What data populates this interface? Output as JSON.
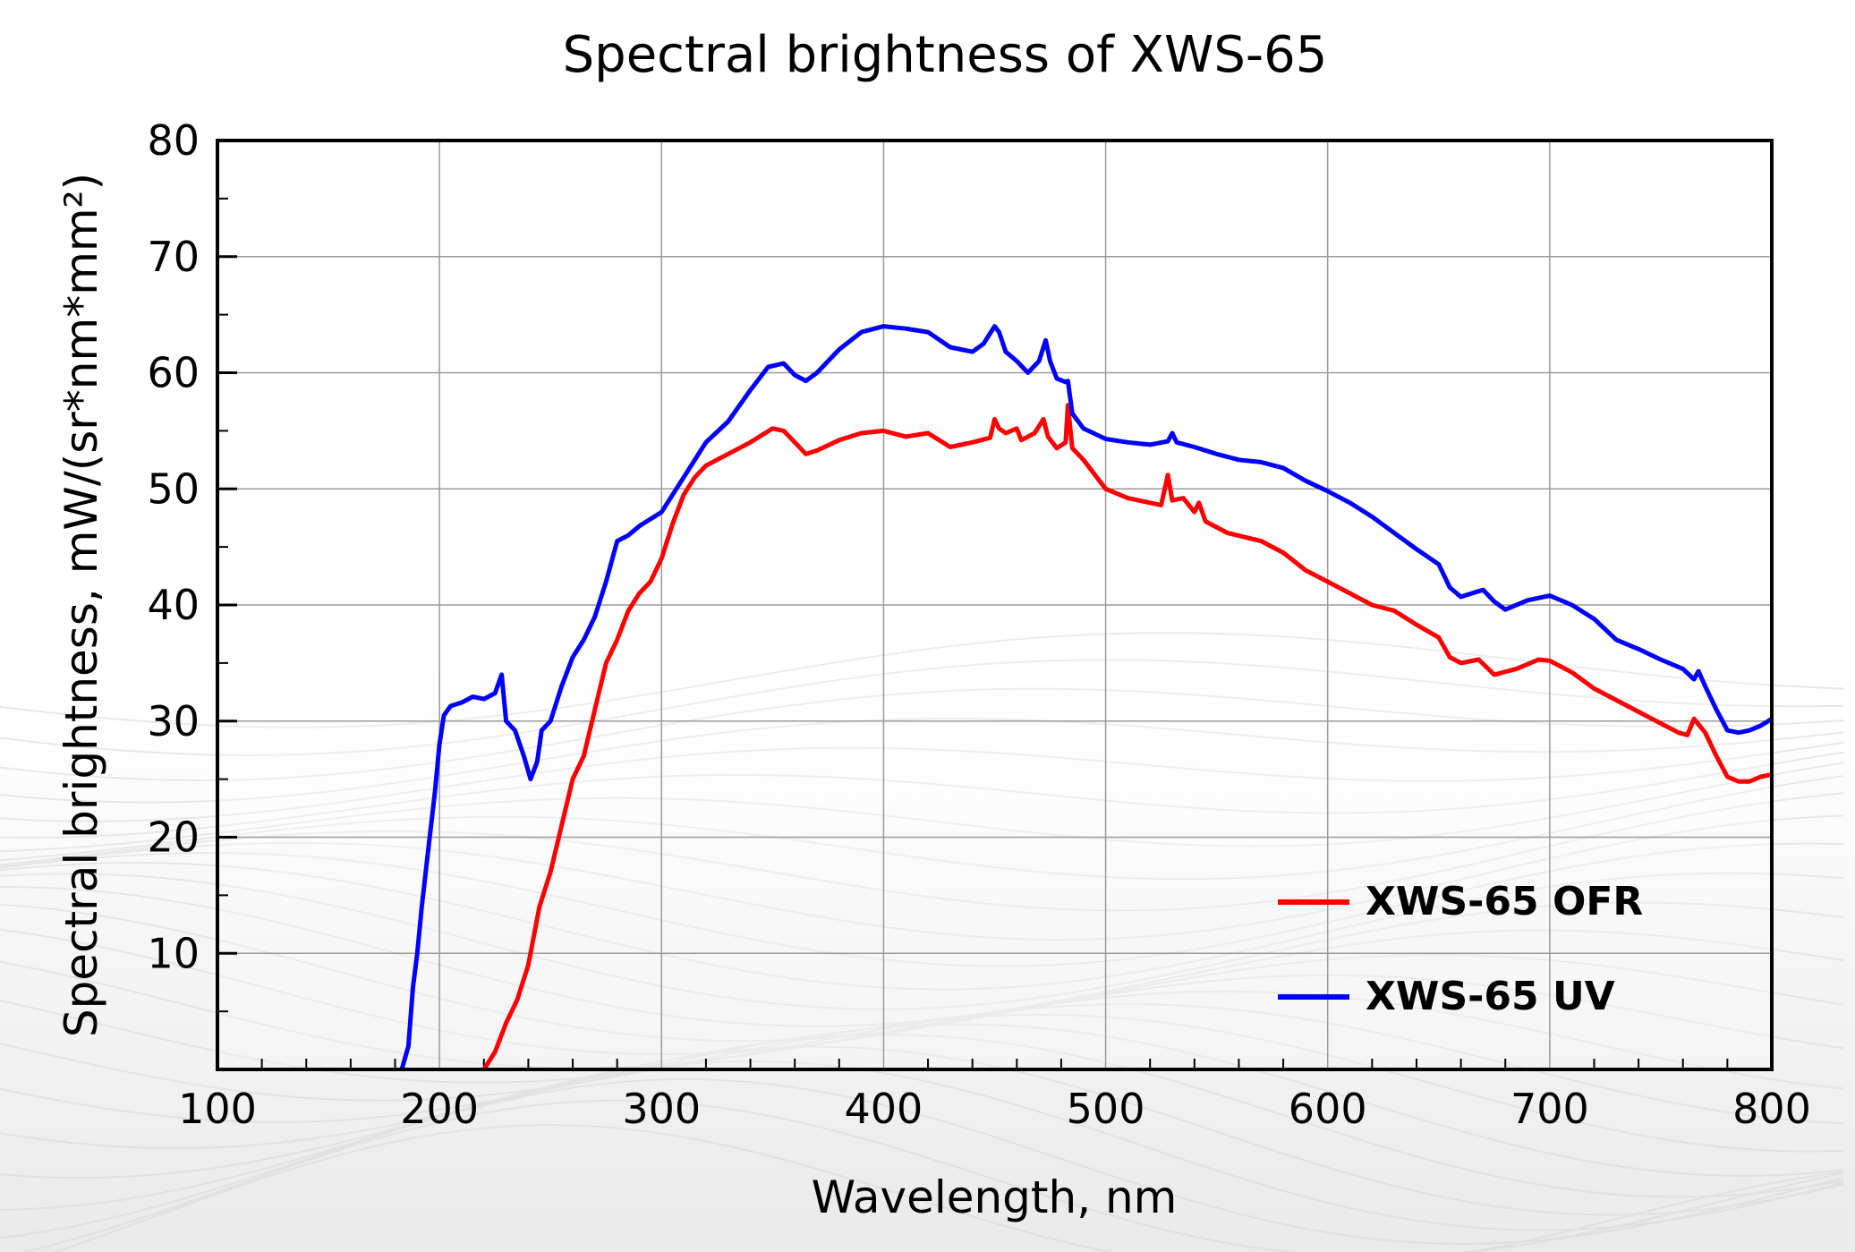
{
  "chart_data": {
    "type": "line",
    "title": "Spectral brightness of XWS-65",
    "xlabel": "Wavelength, nm",
    "ylabel": "Spectral brightness, mW/(sr*nm*mm²)",
    "xlim": [
      100,
      800
    ],
    "ylim": [
      0,
      80
    ],
    "x_ticks": [
      "100",
      "200",
      "300",
      "400",
      "500",
      "600",
      "700",
      "800"
    ],
    "y_ticks": [
      "10",
      "20",
      "30",
      "40",
      "50",
      "60",
      "70",
      "80"
    ],
    "grid": true,
    "legend_position": "bottom-right",
    "series": [
      {
        "name": "XWS-65 OFR",
        "color": "#ff0000",
        "points": [
          [
            220,
            0
          ],
          [
            225,
            1.5
          ],
          [
            230,
            4
          ],
          [
            235,
            6
          ],
          [
            240,
            9
          ],
          [
            245,
            14
          ],
          [
            250,
            17
          ],
          [
            255,
            21
          ],
          [
            260,
            25
          ],
          [
            265,
            27
          ],
          [
            270,
            31
          ],
          [
            275,
            35
          ],
          [
            280,
            37
          ],
          [
            285,
            39.5
          ],
          [
            290,
            41
          ],
          [
            295,
            42
          ],
          [
            300,
            44
          ],
          [
            305,
            47
          ],
          [
            310,
            49.5
          ],
          [
            315,
            51
          ],
          [
            320,
            52
          ],
          [
            330,
            53
          ],
          [
            340,
            54
          ],
          [
            350,
            55.2
          ],
          [
            355,
            55
          ],
          [
            360,
            54
          ],
          [
            365,
            53
          ],
          [
            370,
            53.3
          ],
          [
            380,
            54.2
          ],
          [
            390,
            54.8
          ],
          [
            400,
            55
          ],
          [
            410,
            54.5
          ],
          [
            420,
            54.8
          ],
          [
            430,
            53.6
          ],
          [
            440,
            54
          ],
          [
            448,
            54.4
          ],
          [
            450,
            56
          ],
          [
            452,
            55.2
          ],
          [
            455,
            54.8
          ],
          [
            460,
            55.2
          ],
          [
            462,
            54.2
          ],
          [
            468,
            54.8
          ],
          [
            472,
            56
          ],
          [
            474,
            54.5
          ],
          [
            478,
            53.5
          ],
          [
            482,
            54
          ],
          [
            483,
            57.2
          ],
          [
            485,
            53.5
          ],
          [
            490,
            52.5
          ],
          [
            500,
            50
          ],
          [
            510,
            49.2
          ],
          [
            520,
            48.8
          ],
          [
            525,
            48.6
          ],
          [
            528,
            51.2
          ],
          [
            530,
            49
          ],
          [
            535,
            49.2
          ],
          [
            540,
            48
          ],
          [
            542,
            48.8
          ],
          [
            545,
            47.2
          ],
          [
            555,
            46.2
          ],
          [
            570,
            45.5
          ],
          [
            580,
            44.5
          ],
          [
            590,
            43
          ],
          [
            600,
            42
          ],
          [
            610,
            41
          ],
          [
            620,
            40
          ],
          [
            630,
            39.5
          ],
          [
            640,
            38.3
          ],
          [
            650,
            37.2
          ],
          [
            655,
            35.5
          ],
          [
            660,
            35
          ],
          [
            668,
            35.3
          ],
          [
            675,
            34
          ],
          [
            685,
            34.5
          ],
          [
            695,
            35.3
          ],
          [
            700,
            35.2
          ],
          [
            710,
            34.2
          ],
          [
            720,
            32.8
          ],
          [
            730,
            31.8
          ],
          [
            740,
            30.8
          ],
          [
            750,
            29.8
          ],
          [
            758,
            29
          ],
          [
            762,
            28.8
          ],
          [
            765,
            30.2
          ],
          [
            770,
            29
          ],
          [
            775,
            27
          ],
          [
            780,
            25.2
          ],
          [
            785,
            24.8
          ],
          [
            790,
            24.8
          ],
          [
            795,
            25.2
          ],
          [
            800,
            25.4
          ]
        ]
      },
      {
        "name": "XWS-65 UV",
        "color": "#0000ff",
        "points": [
          [
            183,
            0
          ],
          [
            186,
            2
          ],
          [
            188,
            7
          ],
          [
            190,
            10
          ],
          [
            192,
            14
          ],
          [
            195,
            19
          ],
          [
            198,
            24
          ],
          [
            200,
            28
          ],
          [
            202,
            30.5
          ],
          [
            205,
            31.3
          ],
          [
            210,
            31.6
          ],
          [
            215,
            32.1
          ],
          [
            220,
            31.9
          ],
          [
            225,
            32.4
          ],
          [
            228,
            34
          ],
          [
            230,
            30
          ],
          [
            234,
            29.2
          ],
          [
            238,
            27
          ],
          [
            241,
            25
          ],
          [
            244,
            26.5
          ],
          [
            246,
            29.2
          ],
          [
            250,
            30
          ],
          [
            255,
            33
          ],
          [
            260,
            35.5
          ],
          [
            265,
            37
          ],
          [
            270,
            39
          ],
          [
            275,
            42
          ],
          [
            280,
            45.5
          ],
          [
            285,
            46
          ],
          [
            290,
            46.8
          ],
          [
            295,
            47.4
          ],
          [
            300,
            48
          ],
          [
            310,
            51
          ],
          [
            320,
            54
          ],
          [
            330,
            55.8
          ],
          [
            340,
            58.5
          ],
          [
            348,
            60.5
          ],
          [
            355,
            60.8
          ],
          [
            360,
            59.8
          ],
          [
            365,
            59.3
          ],
          [
            370,
            60
          ],
          [
            380,
            62
          ],
          [
            390,
            63.5
          ],
          [
            400,
            64
          ],
          [
            410,
            63.8
          ],
          [
            420,
            63.5
          ],
          [
            430,
            62.2
          ],
          [
            440,
            61.8
          ],
          [
            445,
            62.5
          ],
          [
            450,
            64
          ],
          [
            452,
            63.5
          ],
          [
            455,
            61.8
          ],
          [
            460,
            61
          ],
          [
            465,
            60
          ],
          [
            470,
            61
          ],
          [
            473,
            62.8
          ],
          [
            475,
            61
          ],
          [
            478,
            59.5
          ],
          [
            482,
            59.2
          ],
          [
            483,
            59.3
          ],
          [
            485,
            56.5
          ],
          [
            490,
            55.2
          ],
          [
            500,
            54.3
          ],
          [
            510,
            54
          ],
          [
            520,
            53.8
          ],
          [
            528,
            54.1
          ],
          [
            530,
            54.8
          ],
          [
            532,
            54
          ],
          [
            540,
            53.6
          ],
          [
            550,
            53
          ],
          [
            560,
            52.5
          ],
          [
            570,
            52.3
          ],
          [
            580,
            51.8
          ],
          [
            590,
            50.7
          ],
          [
            600,
            49.8
          ],
          [
            610,
            48.8
          ],
          [
            620,
            47.6
          ],
          [
            630,
            46.2
          ],
          [
            640,
            44.8
          ],
          [
            650,
            43.5
          ],
          [
            655,
            41.5
          ],
          [
            660,
            40.7
          ],
          [
            670,
            41.3
          ],
          [
            675,
            40.3
          ],
          [
            680,
            39.6
          ],
          [
            690,
            40.4
          ],
          [
            700,
            40.8
          ],
          [
            710,
            40
          ],
          [
            720,
            38.8
          ],
          [
            730,
            37
          ],
          [
            740,
            36.2
          ],
          [
            750,
            35.3
          ],
          [
            760,
            34.5
          ],
          [
            765,
            33.6
          ],
          [
            767,
            34.3
          ],
          [
            770,
            33
          ],
          [
            775,
            31
          ],
          [
            780,
            29.2
          ],
          [
            785,
            29
          ],
          [
            790,
            29.2
          ],
          [
            795,
            29.6
          ],
          [
            800,
            30.2
          ]
        ]
      }
    ]
  }
}
